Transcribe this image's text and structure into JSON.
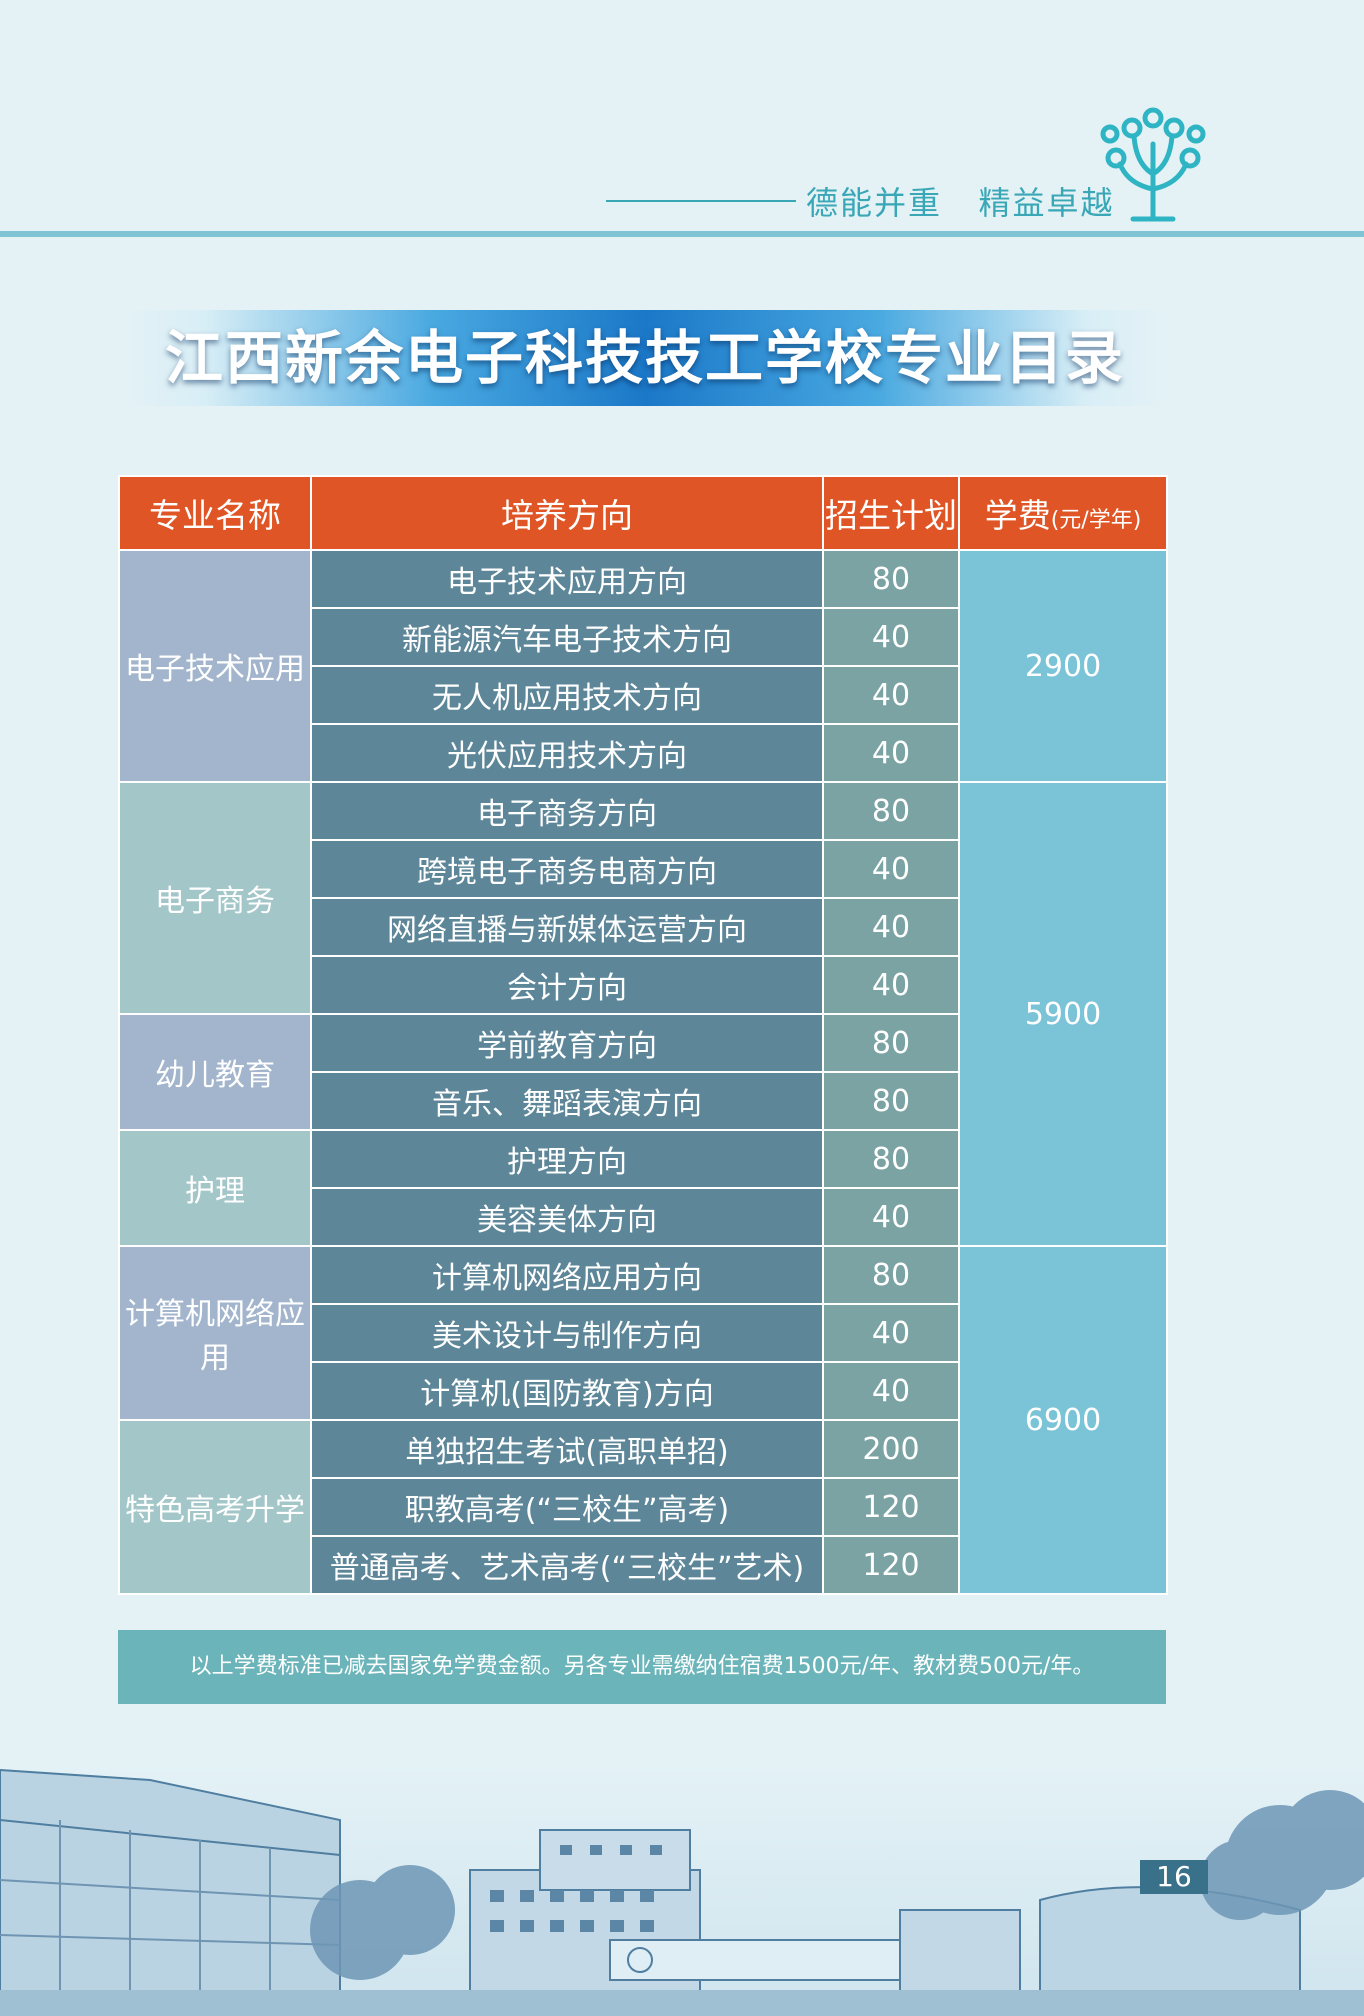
{
  "header": {
    "motto": "德能并重   精益卓越"
  },
  "title": "江西新余电子科技技工学校专业目录",
  "table": {
    "headers": {
      "major": "专业名称",
      "direction": "培养方向",
      "quota": "招生计划",
      "fee": "学费",
      "fee_unit": "(元/学年)"
    },
    "rows": [
      {
        "major": "电子技术应用",
        "direction": "电子技术应用方向",
        "quota": "80",
        "fee": "2900"
      },
      {
        "direction": "新能源汽车电子技术方向",
        "quota": "40"
      },
      {
        "direction": "无人机应用技术方向",
        "quota": "40"
      },
      {
        "direction": "光伏应用技术方向",
        "quota": "40"
      },
      {
        "major": "电子商务",
        "direction": "电子商务方向",
        "quota": "80",
        "fee": "5900"
      },
      {
        "direction": "跨境电子商务电商方向",
        "quota": "40"
      },
      {
        "direction": "网络直播与新媒体运营方向",
        "quota": "40"
      },
      {
        "direction": "会计方向",
        "quota": "40"
      },
      {
        "major": "幼儿教育",
        "direction": "学前教育方向",
        "quota": "80"
      },
      {
        "direction": "音乐、舞蹈表演方向",
        "quota": "80"
      },
      {
        "major": "护理",
        "direction": "护理方向",
        "quota": "80"
      },
      {
        "direction": "美容美体方向",
        "quota": "40"
      },
      {
        "major": "计算机网络应用",
        "direction": "计算机网络应用方向",
        "quota": "80",
        "fee": "6900"
      },
      {
        "direction": "美术设计与制作方向",
        "quota": "40"
      },
      {
        "direction": "计算机(国防教育)方向",
        "quota": "40"
      },
      {
        "major": "特色高考升学",
        "direction": "单独招生考试(高职单招)",
        "quota": "200"
      },
      {
        "direction": "职教高考(“三校生”高考)",
        "quota": "120"
      },
      {
        "direction": "普通高考、艺术高考(“三校生”艺术)",
        "quota": "120"
      }
    ]
  },
  "note": "以上学费标准已减去国家免学费金额。另各专业需缴纳住宿费1500元/年、教材费500元/年。",
  "page_number": "16",
  "colors": {
    "header_orange": "#e05525",
    "direction_cell": "#5d8799",
    "quota_cell": "#7ba3a3",
    "fee_cell": "#7bc3d6",
    "title_blue": "#1b78c8"
  }
}
